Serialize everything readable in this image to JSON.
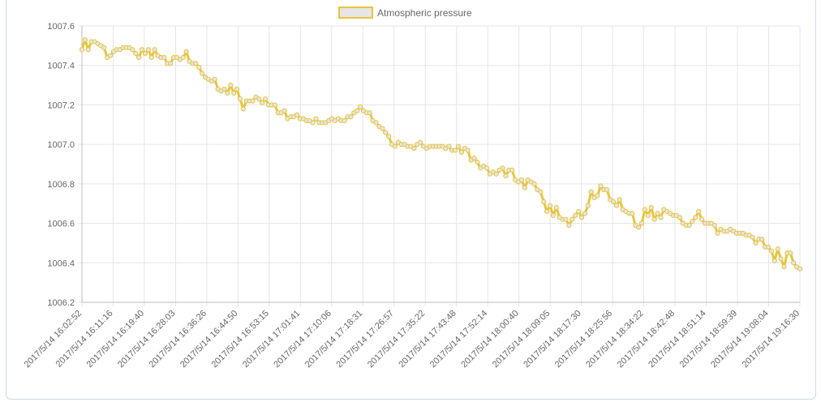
{
  "chart_data": {
    "type": "line",
    "title": "",
    "xlabel": "",
    "ylabel": "",
    "ylim": [
      1006.2,
      1007.6
    ],
    "y_ticks": [
      1006.2,
      1006.4,
      1006.6,
      1006.8,
      1007.0,
      1007.2,
      1007.4,
      1007.6
    ],
    "grid": true,
    "legend_position": "top-center",
    "x_tick_labels": [
      "2017/5/14 16:02:52",
      "2017/5/14 16:11:16",
      "2017/5/14 16:19:40",
      "2017/5/14 16:28:03",
      "2017/5/14 16:36:26",
      "2017/5/14 16:44:50",
      "2017/5/14 16:53:15",
      "2017/5/14 17:01:41",
      "2017/5/14 17:10:06",
      "2017/5/14 17:18:31",
      "2017/5/14 17:26:57",
      "2017/5/14 17:35:22",
      "2017/5/14 17:43:48",
      "2017/5/14 17:52:14",
      "2017/5/14 18:00:40",
      "2017/5/14 18:09:05",
      "2017/5/14 18:17:30",
      "2017/5/14 18:25:56",
      "2017/5/14 18:34:22",
      "2017/5/14 18:42:48",
      "2017/5/14 18:51:14",
      "2017/5/14 18:59:39",
      "2017/5/14 19:08:04",
      "2017/5/14 19:16:30"
    ],
    "series": [
      {
        "name": "Atmospheric pressure",
        "line_color": "#e8c53a",
        "fill_color": "#e6e6e6",
        "values": [
          1007.48,
          1007.53,
          1007.48,
          1007.52,
          1007.52,
          1007.51,
          1007.5,
          1007.49,
          1007.44,
          1007.45,
          1007.47,
          1007.48,
          1007.48,
          1007.49,
          1007.49,
          1007.49,
          1007.48,
          1007.46,
          1007.44,
          1007.48,
          1007.46,
          1007.48,
          1007.44,
          1007.48,
          1007.45,
          1007.44,
          1007.44,
          1007.41,
          1007.41,
          1007.44,
          1007.44,
          1007.43,
          1007.44,
          1007.47,
          1007.42,
          1007.41,
          1007.41,
          1007.39,
          1007.36,
          1007.34,
          1007.33,
          1007.32,
          1007.33,
          1007.28,
          1007.27,
          1007.28,
          1007.26,
          1007.3,
          1007.26,
          1007.28,
          1007.23,
          1007.18,
          1007.22,
          1007.22,
          1007.22,
          1007.24,
          1007.23,
          1007.21,
          1007.23,
          1007.2,
          1007.2,
          1007.2,
          1007.16,
          1007.16,
          1007.17,
          1007.13,
          1007.14,
          1007.14,
          1007.15,
          1007.13,
          1007.13,
          1007.12,
          1007.12,
          1007.11,
          1007.13,
          1007.11,
          1007.11,
          1007.11,
          1007.12,
          1007.13,
          1007.12,
          1007.13,
          1007.12,
          1007.12,
          1007.14,
          1007.14,
          1007.16,
          1007.17,
          1007.19,
          1007.17,
          1007.16,
          1007.16,
          1007.12,
          1007.11,
          1007.09,
          1007.08,
          1007.06,
          1007.04,
          1007.0,
          1006.99,
          1007.01,
          1007.0,
          1007.0,
          1006.99,
          1006.99,
          1006.98,
          1007.0,
          1007.01,
          1006.99,
          1006.98,
          1006.99,
          1006.99,
          1006.99,
          1006.99,
          1006.99,
          1006.98,
          1006.99,
          1006.97,
          1006.97,
          1006.99,
          1006.96,
          1006.98,
          1006.97,
          1006.92,
          1006.93,
          1006.91,
          1006.88,
          1006.89,
          1006.88,
          1006.85,
          1006.86,
          1006.85,
          1006.87,
          1006.88,
          1006.84,
          1006.87,
          1006.87,
          1006.82,
          1006.81,
          1006.82,
          1006.78,
          1006.82,
          1006.81,
          1006.8,
          1006.77,
          1006.76,
          1006.71,
          1006.66,
          1006.69,
          1006.64,
          1006.68,
          1006.63,
          1006.62,
          1006.62,
          1006.59,
          1006.62,
          1006.64,
          1006.66,
          1006.63,
          1006.65,
          1006.69,
          1006.76,
          1006.73,
          1006.74,
          1006.79,
          1006.77,
          1006.77,
          1006.72,
          1006.71,
          1006.69,
          1006.72,
          1006.67,
          1006.66,
          1006.65,
          1006.65,
          1006.59,
          1006.58,
          1006.6,
          1006.67,
          1006.64,
          1006.68,
          1006.62,
          1006.65,
          1006.63,
          1006.67,
          1006.66,
          1006.65,
          1006.64,
          1006.64,
          1006.63,
          1006.6,
          1006.59,
          1006.59,
          1006.61,
          1006.63,
          1006.66,
          1006.62,
          1006.6,
          1006.6,
          1006.6,
          1006.59,
          1006.55,
          1006.57,
          1006.56,
          1006.56,
          1006.57,
          1006.56,
          1006.55,
          1006.55,
          1006.55,
          1006.54,
          1006.54,
          1006.53,
          1006.5,
          1006.52,
          1006.52,
          1006.48,
          1006.48,
          1006.46,
          1006.41,
          1006.47,
          1006.42,
          1006.38,
          1006.45,
          1006.45,
          1006.4,
          1006.38,
          1006.37
        ]
      }
    ]
  }
}
